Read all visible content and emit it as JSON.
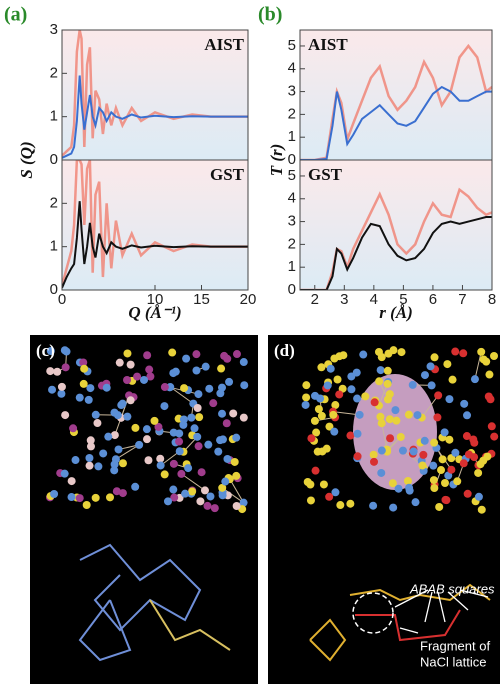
{
  "panels": {
    "a": "(a)",
    "b": "(b)",
    "c": "(c)",
    "d": "(d)"
  },
  "annotations": [
    "ABAB squares",
    "Fragment of",
    "NaCl lattice"
  ],
  "chart_data": [
    {
      "type": "line",
      "label": "AIST",
      "ylabel": "S (Q)",
      "xlim": [
        0,
        20
      ],
      "ylim": [
        0,
        3
      ],
      "yticks": [
        0,
        1,
        2,
        3
      ],
      "x": [
        0,
        0.5,
        1,
        1.3,
        1.6,
        1.9,
        2.1,
        2.4,
        2.7,
        3.0,
        3.3,
        3.6,
        4.0,
        4.4,
        4.8,
        5.3,
        5.8,
        6.5,
        7.5,
        8.5,
        10,
        12,
        14,
        16,
        18,
        20
      ],
      "series": [
        {
          "color": "#f08070",
          "values": [
            0.1,
            0.2,
            0.3,
            0.8,
            2.5,
            3,
            2.8,
            0.3,
            2.2,
            2.6,
            0.5,
            1.6,
            1.4,
            0.6,
            1.3,
            0.8,
            1.2,
            0.8,
            1.2,
            0.9,
            1.1,
            0.95,
            1.05,
            1,
            1,
            1
          ]
        },
        {
          "color": "#3a6fd0",
          "values": [
            0.05,
            0.1,
            0.15,
            0.3,
            0.9,
            1.95,
            1.3,
            0.7,
            1.1,
            1.5,
            1.0,
            0.8,
            1.2,
            1.1,
            0.9,
            1.1,
            1.0,
            0.95,
            1.05,
            0.98,
            1.02,
            0.99,
            1.01,
            1.0,
            1.0,
            1.0
          ]
        }
      ]
    },
    {
      "type": "line",
      "label": "GST",
      "xlabel": "Q (Å⁻¹)",
      "xlim": [
        0,
        20
      ],
      "xticks": [
        0,
        10,
        15,
        20
      ],
      "ylim": [
        0,
        3
      ],
      "yticks": [
        0,
        1,
        2
      ],
      "x": [
        0,
        0.5,
        1,
        1.3,
        1.6,
        1.9,
        2.1,
        2.4,
        2.7,
        3.0,
        3.3,
        3.6,
        4.0,
        4.4,
        4.8,
        5.3,
        5.8,
        6.5,
        7.5,
        8.5,
        10,
        12,
        14,
        16,
        18,
        20
      ],
      "series": [
        {
          "color": "#f08070",
          "values": [
            0.1,
            0.5,
            0.9,
            1.5,
            3,
            3,
            2.9,
            1.5,
            2.8,
            3,
            0.4,
            2.2,
            2.5,
            0.3,
            2,
            0.5,
            1.6,
            0.8,
            1.3,
            0.8,
            1.1,
            0.9,
            1.05,
            1,
            1,
            1
          ]
        },
        {
          "color": "#111111",
          "values": [
            0.05,
            0.3,
            0.5,
            0.6,
            1.2,
            2.05,
            1.4,
            0.6,
            1.0,
            1.55,
            1.0,
            0.75,
            1.3,
            1.0,
            0.85,
            1.1,
            1.0,
            0.95,
            1.03,
            0.98,
            1.02,
            0.99,
            1.01,
            1.0,
            1.0,
            1.0
          ]
        }
      ]
    },
    {
      "type": "line",
      "label": "AIST",
      "ylabel": "T (r)",
      "xlim": [
        1.5,
        8
      ],
      "ylim": [
        0,
        5.7
      ],
      "yticks": [
        0,
        1,
        2,
        3,
        4,
        5
      ],
      "x": [
        1.5,
        2,
        2.4,
        2.6,
        2.75,
        2.9,
        3.1,
        3.3,
        3.6,
        3.9,
        4.2,
        4.5,
        4.8,
        5.1,
        5.4,
        5.7,
        6.0,
        6.3,
        6.6,
        6.9,
        7.2,
        7.5,
        7.8,
        8
      ],
      "series": [
        {
          "color": "#f08070",
          "values": [
            0,
            0,
            0.1,
            1.8,
            3.0,
            2.5,
            0.9,
            1.6,
            2.6,
            3.6,
            4.1,
            2.8,
            2.2,
            2.6,
            3.2,
            4.3,
            3.6,
            2.4,
            3.0,
            4.5,
            5.0,
            4.5,
            3.0,
            3.2
          ]
        },
        {
          "color": "#3a6fd0",
          "values": [
            0,
            0,
            0.05,
            1.5,
            3.0,
            2.2,
            0.7,
            1.1,
            1.8,
            2.1,
            2.4,
            2.0,
            1.6,
            1.5,
            1.7,
            2.3,
            2.9,
            3.2,
            3.0,
            2.6,
            2.6,
            2.8,
            3.0,
            3.0
          ]
        }
      ]
    },
    {
      "type": "line",
      "label": "GST",
      "xlabel": "r (Å)",
      "xlim": [
        1.5,
        8
      ],
      "xticks": [
        2,
        3,
        4,
        5,
        6,
        7,
        8
      ],
      "ylim": [
        0,
        5.7
      ],
      "yticks": [
        0,
        1,
        2,
        3,
        4,
        5
      ],
      "x": [
        1.5,
        2,
        2.4,
        2.6,
        2.75,
        2.9,
        3.1,
        3.3,
        3.6,
        3.9,
        4.2,
        4.5,
        4.8,
        5.1,
        5.4,
        5.7,
        6.0,
        6.3,
        6.6,
        6.9,
        7.2,
        7.5,
        7.8,
        8
      ],
      "series": [
        {
          "color": "#f08070",
          "values": [
            0,
            0,
            0,
            0.8,
            1.8,
            1.7,
            1.0,
            1.8,
            2.6,
            3.4,
            4.2,
            3.3,
            2.0,
            1.6,
            2.0,
            3.0,
            3.8,
            3.3,
            3.2,
            4.4,
            4.1,
            3.6,
            3.3,
            3.4
          ]
        },
        {
          "color": "#111111",
          "values": [
            0,
            0,
            0,
            0.6,
            1.8,
            1.6,
            0.9,
            1.4,
            2.3,
            2.9,
            2.8,
            2.0,
            1.5,
            1.3,
            1.4,
            1.8,
            2.5,
            2.9,
            3.0,
            2.9,
            3.0,
            3.1,
            3.2,
            3.2
          ]
        }
      ]
    }
  ]
}
